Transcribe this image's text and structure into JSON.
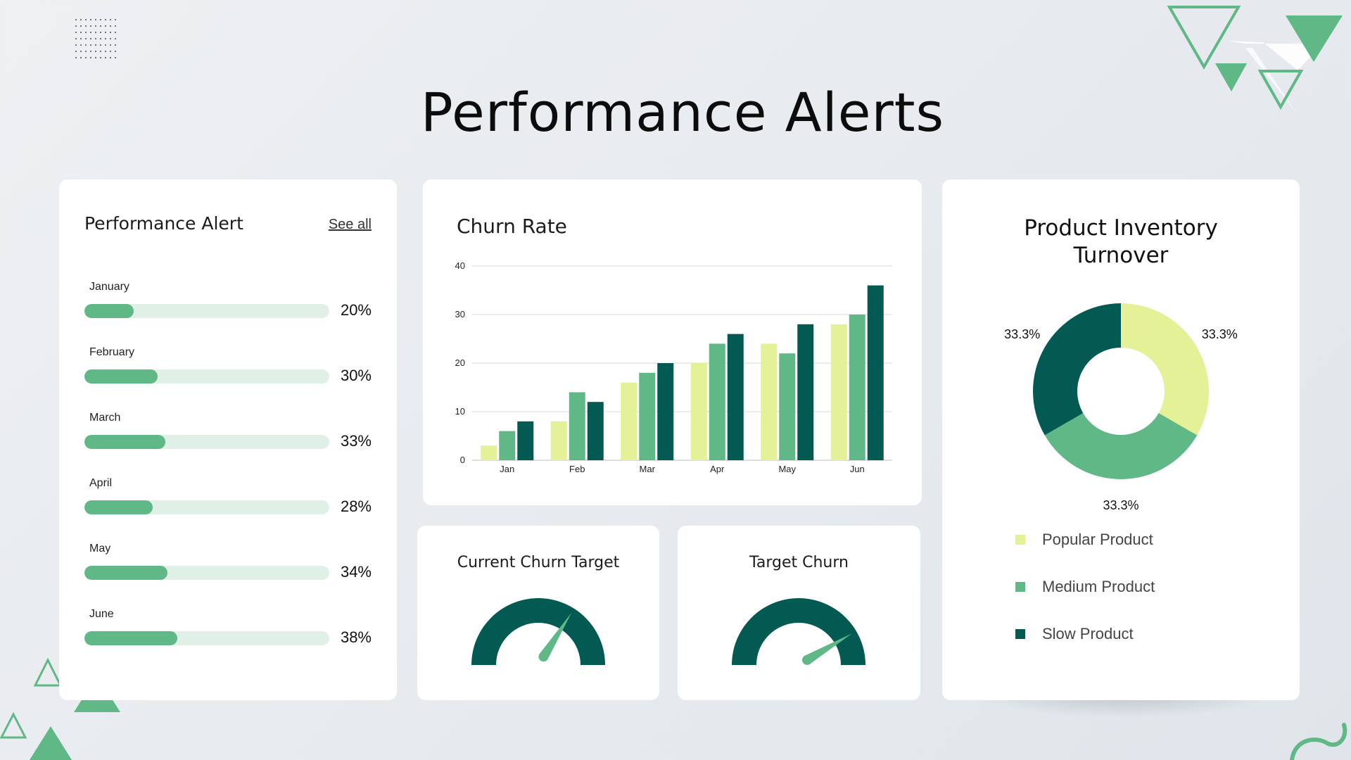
{
  "page": {
    "title": "Performance Alerts"
  },
  "colors": {
    "light": "#e4f197",
    "medium": "#61b887",
    "dark": "#025a52",
    "track": "#e1f0e6",
    "grid": "#d9d9d9"
  },
  "performance_card": {
    "title": "Performance Alert",
    "see_all": "See all",
    "rows": [
      {
        "month": "January",
        "value": 20,
        "value_text": "20%"
      },
      {
        "month": "February",
        "value": 30,
        "value_text": "30%"
      },
      {
        "month": "March",
        "value": 33,
        "value_text": "33%"
      },
      {
        "month": "April",
        "value": 28,
        "value_text": "28%"
      },
      {
        "month": "May",
        "value": 34,
        "value_text": "34%"
      },
      {
        "month": "June",
        "value": 38,
        "value_text": "38%"
      }
    ]
  },
  "gauges": [
    {
      "title": "Current Churn Target",
      "value": 0.68
    },
    {
      "title": "Target Churn",
      "value": 0.83
    }
  ],
  "inventory": {
    "title_line1": "Product Inventory",
    "title_line2": "Turnover"
  },
  "chart_data": [
    {
      "type": "bar",
      "title": "Churn Rate",
      "categories": [
        "Jan",
        "Feb",
        "Mar",
        "Apr",
        "May",
        "Jun"
      ],
      "series": [
        {
          "values": [
            3,
            8,
            16,
            20,
            24,
            28
          ],
          "color": "#e4f197"
        },
        {
          "values": [
            6,
            14,
            18,
            24,
            22,
            30
          ],
          "color": "#61b887"
        },
        {
          "values": [
            8,
            12,
            20,
            26,
            28,
            36
          ],
          "color": "#025a52"
        }
      ],
      "ylim": [
        0,
        40
      ],
      "yticks": [
        0,
        10,
        20,
        30,
        40
      ],
      "grid": true
    },
    {
      "type": "pie",
      "title": "Product Inventory Turnover",
      "donut": true,
      "labels": [
        "Popular Product",
        "Medium Product",
        "Slow Product"
      ],
      "values": [
        33.3,
        33.3,
        33.3
      ],
      "value_labels": [
        "33.3%",
        "33.3%",
        "33.3%"
      ],
      "colors": [
        "#e4f197",
        "#61b887",
        "#025a52"
      ],
      "legend": "bottom"
    }
  ]
}
